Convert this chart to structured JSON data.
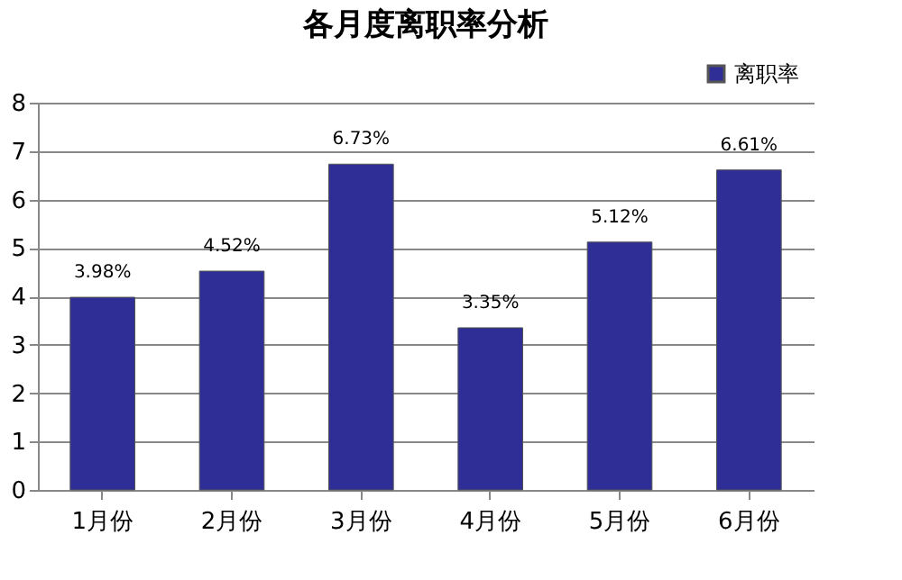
{
  "chart_data": {
    "type": "bar",
    "title": "各月度离职率分析",
    "categories": [
      "1月份",
      "2月份",
      "3月份",
      "4月份",
      "5月份",
      "6月份"
    ],
    "series": [
      {
        "name": "离职率",
        "color": "#2e2e96",
        "values": [
          3.98,
          4.52,
          6.73,
          3.35,
          5.12,
          6.61
        ],
        "value_labels": [
          "3.98%",
          "4.52%",
          "6.73%",
          "3.35%",
          "5.12%",
          "6.61%"
        ]
      }
    ],
    "ylim": [
      0,
      8
    ],
    "yticks": [
      0,
      1,
      2,
      3,
      4,
      5,
      6,
      7,
      8
    ],
    "grid": "y",
    "legend": "top right"
  }
}
